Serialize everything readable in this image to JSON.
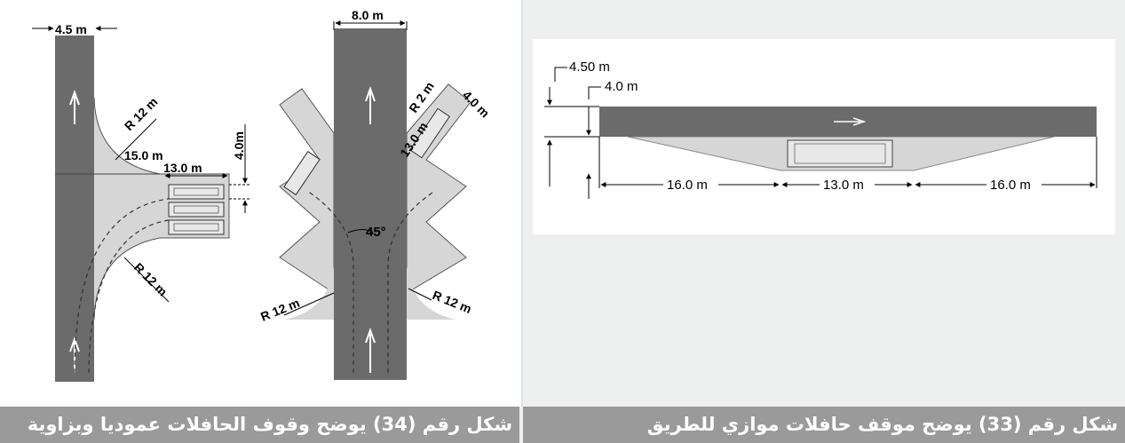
{
  "captions": {
    "fig34": "شكل رقم (34) يوضح وقوف الحافلات عموديا وبزاوية",
    "fig33": "شكل رقم (33) يوضح موقف حافلات موازي للطريق"
  },
  "fig34": {
    "perpendicular": {
      "road_width": "4.5 m",
      "radius_top": "R 12 m",
      "radius_bottom": "R 12 m",
      "bay_length": "15.0 m",
      "bus_length": "13.0 m",
      "bay_width": "4.0m"
    },
    "angled": {
      "road_width": "8.0 m",
      "radius_small": "R 2 m",
      "bay_depth": "4.0 m",
      "bus_length": "13.0 m",
      "angle": "45°",
      "radius_left": "R 12 m",
      "radius_right": "R 12 m"
    }
  },
  "fig33": {
    "total_offset": "4.50 m",
    "bay_offset": "4.0 m",
    "taper_left": "16.0 m",
    "bus_length": "13.0 m",
    "taper_right": "16.0 m"
  },
  "colors": {
    "road": "#6b6b6b",
    "bay": "#d6d6d6",
    "caption_bg": "#9a9a9a",
    "panel_bg": "#eef0ef"
  }
}
